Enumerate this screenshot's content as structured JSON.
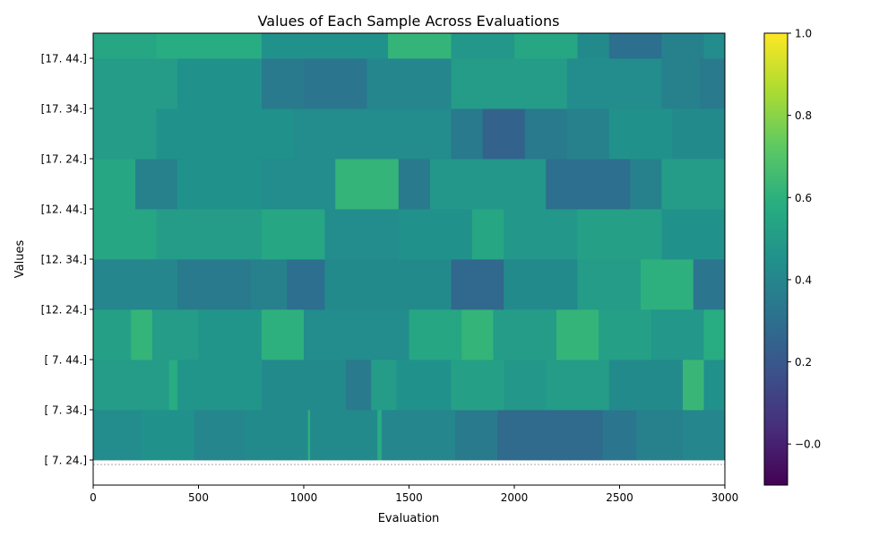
{
  "chart_data": {
    "type": "heatmap",
    "title": "Values of Each Sample Across Evaluations",
    "xlabel": "Evaluation",
    "ylabel": "Values",
    "xlim": [
      0,
      3000
    ],
    "xticks": [
      0,
      500,
      1000,
      1500,
      2000,
      2500,
      3000
    ],
    "xtick_labels": [
      "0",
      "500",
      "1000",
      "1500",
      "2000",
      "2500",
      "3000"
    ],
    "ylim": [
      -0.5,
      8.5
    ],
    "ytick_labels": [
      "[ 7. 24.]",
      "[ 7. 34.]",
      "[ 7. 44.]",
      "[12. 24.]",
      "[12. 34.]",
      "[12. 44.]",
      "[17. 24.]",
      "[17. 34.]",
      "[17. 44.]"
    ],
    "colormap": "viridis",
    "colorbar": {
      "vmin": -0.1,
      "vmax": 1.0,
      "ticks": [
        -0.0,
        0.2,
        0.4,
        0.6,
        0.8,
        1.0
      ],
      "tick_labels": [
        "−0.0",
        "0.2",
        "0.4",
        "0.6",
        "0.8",
        "1.0"
      ]
    },
    "reference_line": {
      "y": -0.5,
      "style": "dotted",
      "color": "#888888"
    },
    "rows": [
      {
        "label": "[ 7. 24.]",
        "segments": [
          [
            0,
            230,
            0.43
          ],
          [
            230,
            480,
            0.45
          ],
          [
            480,
            720,
            0.4
          ],
          [
            720,
            1020,
            0.42
          ],
          [
            1020,
            1030,
            0.6
          ],
          [
            1030,
            1350,
            0.42
          ],
          [
            1350,
            1370,
            0.58
          ],
          [
            1370,
            1720,
            0.4
          ],
          [
            1720,
            1920,
            0.35
          ],
          [
            1920,
            2420,
            0.28
          ],
          [
            2420,
            2580,
            0.33
          ],
          [
            2580,
            2800,
            0.38
          ],
          [
            2800,
            3000,
            0.4
          ]
        ]
      },
      {
        "label": "[ 7. 34.]",
        "segments": [
          [
            0,
            100,
            0.5
          ],
          [
            100,
            360,
            0.5
          ],
          [
            360,
            400,
            0.58
          ],
          [
            400,
            800,
            0.47
          ],
          [
            800,
            1200,
            0.42
          ],
          [
            1200,
            1320,
            0.35
          ],
          [
            1320,
            1440,
            0.5
          ],
          [
            1440,
            1700,
            0.45
          ],
          [
            1700,
            1950,
            0.52
          ],
          [
            1950,
            2150,
            0.48
          ],
          [
            2150,
            2450,
            0.5
          ],
          [
            2450,
            2800,
            0.42
          ],
          [
            2800,
            2900,
            0.63
          ],
          [
            2900,
            3000,
            0.45
          ]
        ]
      },
      {
        "label": "[ 7. 44.]",
        "segments": [
          [
            0,
            180,
            0.52
          ],
          [
            180,
            280,
            0.62
          ],
          [
            280,
            500,
            0.5
          ],
          [
            500,
            800,
            0.47
          ],
          [
            800,
            1000,
            0.6
          ],
          [
            1000,
            1500,
            0.43
          ],
          [
            1500,
            1750,
            0.55
          ],
          [
            1750,
            1900,
            0.62
          ],
          [
            1900,
            2200,
            0.5
          ],
          [
            2200,
            2400,
            0.62
          ],
          [
            2400,
            2650,
            0.52
          ],
          [
            2650,
            2900,
            0.48
          ],
          [
            2900,
            3000,
            0.58
          ]
        ]
      },
      {
        "label": "[12. 24.]",
        "segments": [
          [
            0,
            400,
            0.4
          ],
          [
            400,
            750,
            0.35
          ],
          [
            750,
            920,
            0.38
          ],
          [
            920,
            1100,
            0.3
          ],
          [
            1100,
            1700,
            0.42
          ],
          [
            1700,
            1950,
            0.27
          ],
          [
            1950,
            2300,
            0.42
          ],
          [
            2300,
            2600,
            0.5
          ],
          [
            2600,
            2850,
            0.6
          ],
          [
            2850,
            3000,
            0.33
          ]
        ]
      },
      {
        "label": "[12. 34.]",
        "segments": [
          [
            0,
            300,
            0.55
          ],
          [
            300,
            800,
            0.5
          ],
          [
            800,
            1100,
            0.55
          ],
          [
            1100,
            1450,
            0.43
          ],
          [
            1450,
            1800,
            0.45
          ],
          [
            1800,
            1950,
            0.55
          ],
          [
            1950,
            2300,
            0.48
          ],
          [
            2300,
            2700,
            0.52
          ],
          [
            2700,
            3000,
            0.45
          ]
        ]
      },
      {
        "label": "[12. 44.]",
        "segments": [
          [
            0,
            200,
            0.55
          ],
          [
            200,
            400,
            0.38
          ],
          [
            400,
            800,
            0.45
          ],
          [
            800,
            1150,
            0.43
          ],
          [
            1150,
            1450,
            0.62
          ],
          [
            1450,
            1600,
            0.35
          ],
          [
            1600,
            2150,
            0.48
          ],
          [
            2150,
            2550,
            0.3
          ],
          [
            2550,
            2700,
            0.38
          ],
          [
            2700,
            3000,
            0.5
          ]
        ]
      },
      {
        "label": "[17. 24.]",
        "segments": [
          [
            0,
            300,
            0.5
          ],
          [
            300,
            950,
            0.45
          ],
          [
            950,
            1700,
            0.43
          ],
          [
            1700,
            1850,
            0.35
          ],
          [
            1850,
            2050,
            0.25
          ],
          [
            2050,
            2250,
            0.35
          ],
          [
            2250,
            2450,
            0.38
          ],
          [
            2450,
            2750,
            0.45
          ],
          [
            2750,
            3000,
            0.42
          ]
        ]
      },
      {
        "label": "[17. 34.]",
        "segments": [
          [
            0,
            400,
            0.5
          ],
          [
            400,
            800,
            0.45
          ],
          [
            800,
            1000,
            0.35
          ],
          [
            1000,
            1300,
            0.33
          ],
          [
            1300,
            1700,
            0.4
          ],
          [
            1700,
            2250,
            0.5
          ],
          [
            2250,
            2700,
            0.43
          ],
          [
            2700,
            2880,
            0.38
          ],
          [
            2880,
            3000,
            0.35
          ]
        ]
      },
      {
        "label": "[17. 44.]",
        "segments": [
          [
            0,
            300,
            0.55
          ],
          [
            300,
            800,
            0.58
          ],
          [
            800,
            1400,
            0.45
          ],
          [
            1400,
            1700,
            0.62
          ],
          [
            1700,
            2000,
            0.48
          ],
          [
            2000,
            2300,
            0.55
          ],
          [
            2300,
            2450,
            0.42
          ],
          [
            2450,
            2700,
            0.3
          ],
          [
            2700,
            2900,
            0.38
          ],
          [
            2900,
            3000,
            0.43
          ]
        ]
      }
    ]
  }
}
